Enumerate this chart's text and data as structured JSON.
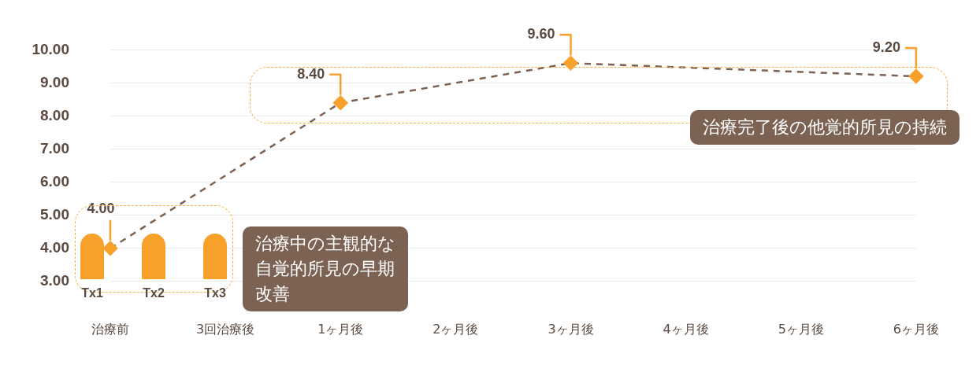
{
  "chart_data": {
    "type": "line",
    "categories": [
      "治療前",
      "3回治療後",
      "1ヶ月後",
      "2ヶ月後",
      "3ヶ月後",
      "4ヶ月後",
      "5ヶ月後",
      "6ヶ月後"
    ],
    "series": [
      {
        "color": "#7b6252",
        "values": [
          4.0,
          null,
          8.4,
          null,
          9.6,
          null,
          null,
          9.2
        ],
        "value_labels": [
          "4.00",
          null,
          "8.40",
          null,
          "9.60",
          null,
          null,
          "9.20"
        ]
      }
    ],
    "ylim": [
      3,
      10
    ],
    "yticks": [
      {
        "value": 3,
        "label": "3.00"
      },
      {
        "value": 4,
        "label": "4.00"
      },
      {
        "value": 5,
        "label": "5.00"
      },
      {
        "value": 6,
        "label": "6.00"
      },
      {
        "value": 7,
        "label": "7.00"
      },
      {
        "value": 8,
        "label": "8.00"
      },
      {
        "value": 9,
        "label": "9.00"
      },
      {
        "value": 10,
        "label": "10.00"
      }
    ],
    "grid": "y",
    "legend": false,
    "marker": "diamond",
    "line_style": "dashed",
    "annotations": [
      "Tx1",
      "Tx2",
      "Tx3",
      "治療中の主観的な自覚的所見の早期改善",
      "治療完了後の他覚的所見の持続"
    ]
  }
}
